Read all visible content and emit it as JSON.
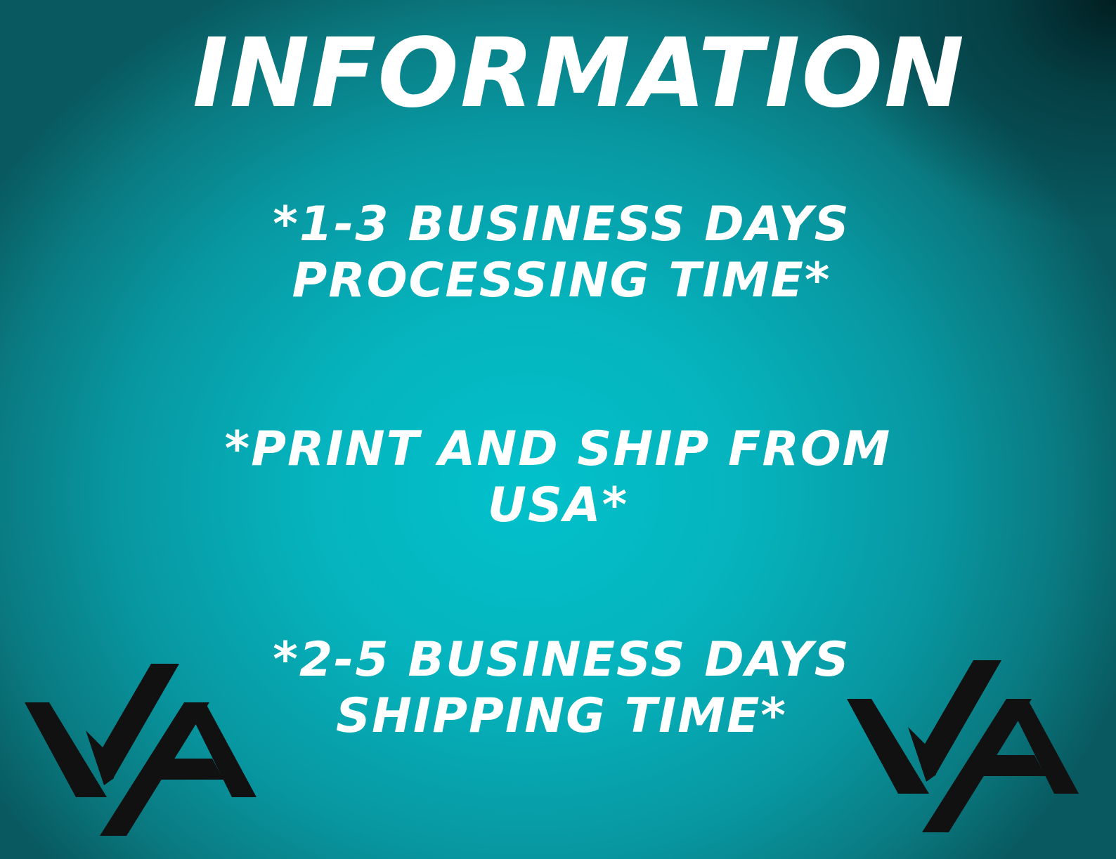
{
  "title": "INFORMATION",
  "lines": [
    "*1-3 BUSINESS DAYS",
    "PROCESSING TIME*",
    "*PRINT AND SHIP FROM",
    "USA*",
    "*2-5 BUSINESS DAYS",
    "SHIPPING TIME*"
  ],
  "logo": {
    "text": "VA",
    "color": "#111111"
  },
  "colors": {
    "text": "#ffffff",
    "background_center": "#02c1cb",
    "background_edge": "#085a60"
  }
}
